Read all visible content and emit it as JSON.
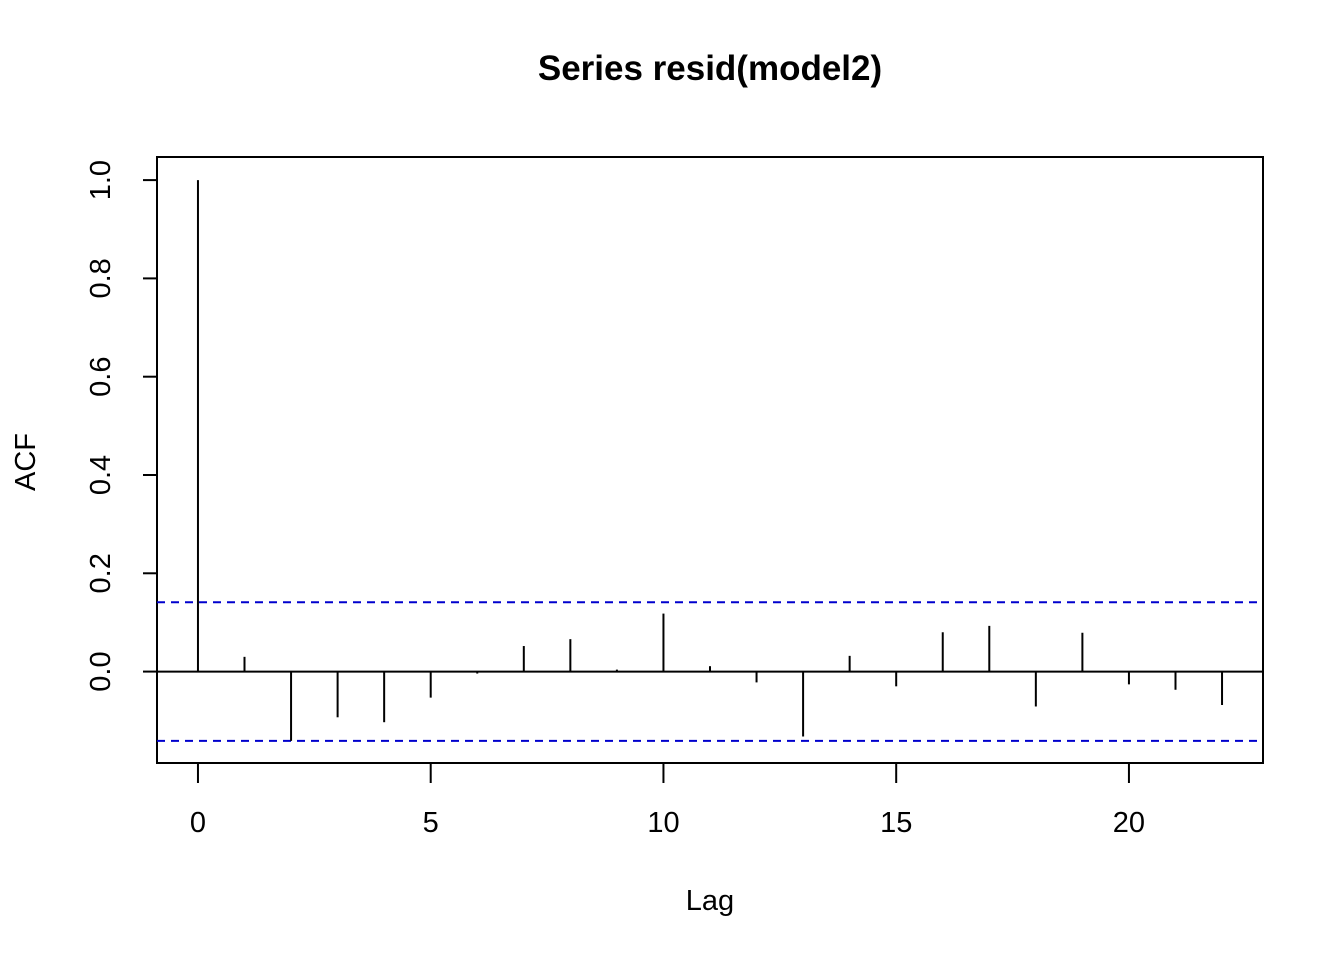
{
  "chart_data": {
    "type": "bar",
    "title": "Series  resid(model2)",
    "xlabel": "Lag",
    "ylabel": "ACF",
    "xlim": [
      -0.88,
      22.88
    ],
    "ylim": [
      -0.186,
      1.047
    ],
    "x_ticks": [
      0,
      5,
      10,
      15,
      20
    ],
    "x_tick_labels": [
      "0",
      "5",
      "10",
      "15",
      "20"
    ],
    "y_ticks": [
      0.0,
      0.2,
      0.4,
      0.6,
      0.8,
      1.0
    ],
    "y_tick_labels": [
      "0.0",
      "0.2",
      "0.4",
      "0.6",
      "0.8",
      "1.0"
    ],
    "lags": [
      0,
      1,
      2,
      3,
      4,
      5,
      6,
      7,
      8,
      9,
      10,
      11,
      12,
      13,
      14,
      15,
      16,
      17,
      18,
      19,
      20,
      21,
      22
    ],
    "acf": [
      1.0,
      0.03,
      -0.141,
      -0.093,
      -0.103,
      -0.053,
      -0.004,
      0.052,
      0.066,
      0.004,
      0.118,
      0.011,
      -0.022,
      -0.132,
      0.032,
      -0.03,
      0.08,
      0.093,
      -0.071,
      0.079,
      -0.026,
      -0.037,
      -0.068
    ],
    "confidence_bounds": [
      0.141,
      -0.141
    ],
    "confidence_line_color": "#0000CD",
    "grid": false,
    "legend": "none"
  }
}
